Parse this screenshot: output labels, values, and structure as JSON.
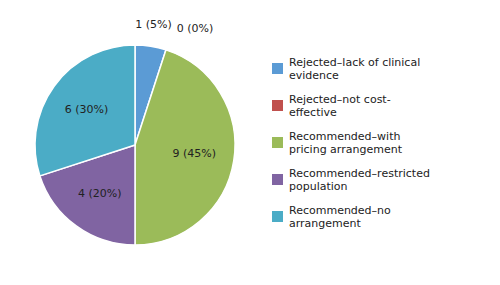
{
  "chart_data": {
    "type": "pie",
    "categories": [
      "Rejected–lack of clinical\nevidence",
      "Rejected–not cost-\neffective",
      "Recommended–with\npricing arrangement",
      "Recommended–restricted\npopulation",
      "Recommended–no\narrangement"
    ],
    "values": [
      1,
      0,
      9,
      4,
      6
    ],
    "value_labels": [
      "1 (5%)",
      "0 (0%)",
      "9 (45%)",
      "4 (20%)",
      "6 (30%)"
    ],
    "colors": [
      "#5b9bd5",
      "#c0504d",
      "#9bbb59",
      "#8064a2",
      "#4bacc6"
    ],
    "data_labels": true,
    "legend": "right"
  }
}
